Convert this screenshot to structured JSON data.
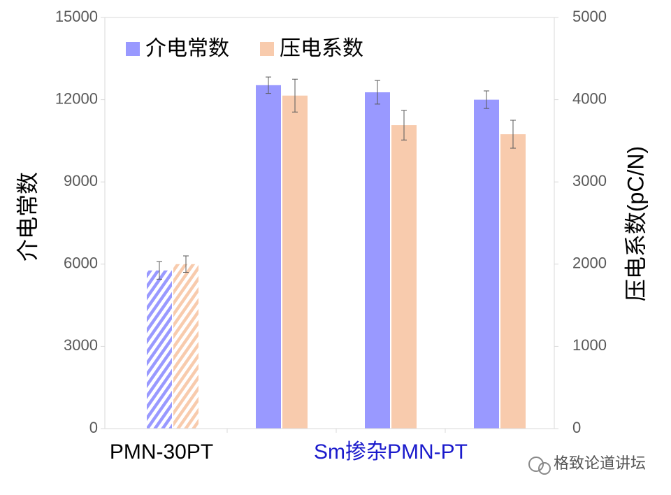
{
  "chart_data": {
    "type": "bar",
    "categories": [
      null,
      null,
      null,
      null
    ],
    "category_groups": [
      {
        "label": "PMN-30PT",
        "color": "#000000",
        "size": 1
      },
      {
        "label": "Sm掺杂PMN-PT",
        "color": "#1a1acc",
        "size": 3
      }
    ],
    "patterns": [
      "hatch",
      "solid",
      "solid",
      "solid"
    ],
    "series": [
      {
        "name": "介电常数",
        "color": "#9999ff",
        "values": [
          5770,
          12530,
          12270,
          12000
        ],
        "errors": [
          320,
          300,
          430,
          320
        ]
      },
      {
        "name": "压电系数",
        "color": "#f8cbad",
        "axis": "y2",
        "values": [
          2000,
          4050,
          3690,
          3580
        ],
        "errors": [
          100,
          200,
          180,
          170
        ]
      }
    ],
    "y_label": "介电常数",
    "y2_label": "压电系数(pC/N)",
    "ylim": [
      0,
      15000
    ],
    "yticks": [
      0,
      3000,
      6000,
      9000,
      12000,
      15000
    ],
    "y2lim": [
      0,
      5000
    ],
    "y2ticks": [
      0,
      1000,
      2000,
      3000,
      4000,
      5000
    ],
    "legend": "top-left",
    "watermark": "格致论道讲坛"
  }
}
